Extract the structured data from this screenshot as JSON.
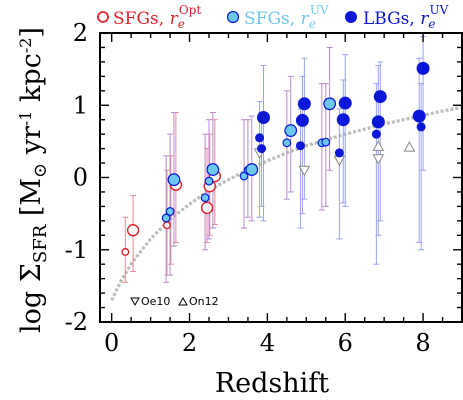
{
  "chart_data": {
    "type": "scatter",
    "xlabel": "Redshift",
    "ylabel": "log ΣSFR [M⊙ yr-1 kpc-2]",
    "ylabel_parts": {
      "prefix": "log Σ",
      "sub": "SFR",
      "bracket_open": " [M",
      "sun": "⊙",
      "yr": " yr",
      "yr_exp": "-1",
      "kpc": " kpc",
      "kpc_exp": "-2",
      "bracket_close": "]"
    },
    "xlim": [
      -0.3,
      9.0
    ],
    "ylim": [
      -2.0,
      2.0
    ],
    "x_ticks": [
      0,
      2,
      4,
      6,
      8
    ],
    "y_ticks": [
      -2,
      -1,
      0,
      1,
      2
    ],
    "grid": false,
    "legend_placement": "top",
    "legend": [
      {
        "name": "SFGs, ",
        "re": "r",
        "sub": "e",
        "sup": "Opt",
        "color": "#e0202c",
        "marker": "open-circle"
      },
      {
        "name": "SFGs, ",
        "re": "r",
        "sub": "e",
        "sup": "UV",
        "color": "#6cc8ee",
        "marker": "filled-circle-outlined"
      },
      {
        "name": "LBGs, ",
        "re": "r",
        "sub": "e",
        "sup": "UV",
        "color": "#0a17d9",
        "marker": "filled-circle"
      }
    ],
    "annotations": [
      {
        "label": "Oe10",
        "marker": "triangle-down"
      },
      {
        "label": "On12",
        "marker": "triangle-up"
      }
    ],
    "colors": {
      "sfg_opt": "#e0202c",
      "sfg_opt_err": "#e88a93",
      "sfg_uv": "#6cc8ee",
      "sfg_uv_err": "#b78ad0",
      "lbg": "#0a17d9",
      "lbg_err": "#9aa3ee",
      "fit": "#bbbbbb",
      "triangles": "#888888"
    },
    "fit_curve": {
      "name": "",
      "x": [
        0,
        0.25,
        0.5,
        0.75,
        1.0,
        1.5,
        2.0,
        2.5,
        3.0,
        3.5,
        4.0,
        4.5,
        5.0,
        5.5,
        6.0,
        6.5,
        7.0,
        7.5,
        8.0,
        8.5,
        9.0
      ],
      "y": [
        -1.7,
        -1.42,
        -1.2,
        -1.02,
        -0.85,
        -0.58,
        -0.37,
        -0.18,
        -0.03,
        0.11,
        0.23,
        0.34,
        0.44,
        0.52,
        0.6,
        0.67,
        0.74,
        0.8,
        0.86,
        0.92,
        0.97
      ]
    },
    "series": [
      {
        "key": "sfg_opt",
        "points": [
          {
            "x": 0.35,
            "y": -1.03,
            "lo": -1.45,
            "hi": -0.55
          },
          {
            "x": 0.55,
            "y": -0.73,
            "lo": -1.3,
            "hi": -0.25
          },
          {
            "x": 1.42,
            "y": -0.66,
            "lo": -1.35,
            "hi": 0.1
          },
          {
            "x": 1.52,
            "y": -0.47,
            "lo": -1.2,
            "hi": 0.3
          },
          {
            "x": 1.65,
            "y": -0.1,
            "lo": -0.9,
            "hi": 0.9
          },
          {
            "x": 2.45,
            "y": -0.42,
            "lo": -0.9,
            "hi": 0.4
          },
          {
            "x": 2.52,
            "y": -0.12,
            "lo": -0.8,
            "hi": 0.6
          },
          {
            "x": 2.65,
            "y": 0.02,
            "lo": -0.65,
            "hi": 0.8
          }
        ]
      },
      {
        "key": "sfg_uv",
        "points": [
          {
            "x": 1.4,
            "y": -0.56,
            "lo": -1.45,
            "hi": 0.3
          },
          {
            "x": 1.5,
            "y": -0.47,
            "lo": -1.35,
            "hi": 0.6
          },
          {
            "x": 1.6,
            "y": -0.03,
            "lo": -0.95,
            "hi": 0.9
          },
          {
            "x": 2.4,
            "y": -0.28,
            "lo": -1.0,
            "hi": 0.6
          },
          {
            "x": 2.5,
            "y": -0.05,
            "lo": -0.85,
            "hi": 0.8
          },
          {
            "x": 2.6,
            "y": 0.11,
            "lo": -0.7,
            "hi": 0.9
          },
          {
            "x": 3.4,
            "y": 0.02,
            "lo": -0.7,
            "hi": 0.8
          },
          {
            "x": 3.5,
            "y": 0.1,
            "lo": -0.55,
            "hi": 0.8
          },
          {
            "x": 3.6,
            "y": 0.11,
            "lo": -0.6,
            "hi": 0.85
          },
          {
            "x": 4.5,
            "y": 0.48,
            "lo": -0.3,
            "hi": 1.2
          },
          {
            "x": 4.6,
            "y": 0.65,
            "lo": -0.2,
            "hi": 1.4
          },
          {
            "x": 5.4,
            "y": 0.48,
            "lo": -0.45,
            "hi": 1.3
          },
          {
            "x": 5.5,
            "y": 0.49,
            "lo": -0.4,
            "hi": 1.3
          },
          {
            "x": 5.6,
            "y": 1.02,
            "lo": 0.1,
            "hi": 1.8
          }
        ]
      },
      {
        "key": "lbg",
        "points": [
          {
            "x": 3.8,
            "y": 0.55,
            "lo": -0.55,
            "hi": 1.05
          },
          {
            "x": 3.85,
            "y": 0.4,
            "lo": -0.4,
            "hi": 0.9
          },
          {
            "x": 3.9,
            "y": 0.83,
            "lo": -0.6,
            "hi": 1.55
          },
          {
            "x": 4.85,
            "y": 0.44,
            "lo": -0.7,
            "hi": 0.95
          },
          {
            "x": 4.9,
            "y": 0.79,
            "lo": -0.5,
            "hi": 1.4
          },
          {
            "x": 4.95,
            "y": 1.02,
            "lo": -0.3,
            "hi": 1.65
          },
          {
            "x": 5.85,
            "y": 0.34,
            "lo": -0.85,
            "hi": 0.95
          },
          {
            "x": 5.95,
            "y": 0.8,
            "lo": -0.35,
            "hi": 1.35
          },
          {
            "x": 6.0,
            "y": 1.03,
            "lo": -0.4,
            "hi": 1.7
          },
          {
            "x": 6.8,
            "y": 0.6,
            "lo": -1.2,
            "hi": 1.3
          },
          {
            "x": 6.85,
            "y": 0.77,
            "lo": -0.8,
            "hi": 1.55
          },
          {
            "x": 6.9,
            "y": 1.12,
            "lo": -0.6,
            "hi": 1.6
          },
          {
            "x": 7.9,
            "y": 0.85,
            "lo": -0.9,
            "hi": 1.65
          },
          {
            "x": 7.95,
            "y": 0.7,
            "lo": -1.0,
            "hi": 1.3
          },
          {
            "x": 8.0,
            "y": 1.51,
            "lo": 0.1,
            "hi": 1.95
          }
        ]
      },
      {
        "key": "oe10",
        "points": [
          {
            "x": 3.8,
            "y": 0.34
          },
          {
            "x": 4.95,
            "y": 0.1
          },
          {
            "x": 5.85,
            "y": 0.24
          },
          {
            "x": 6.85,
            "y": 0.26
          }
        ]
      },
      {
        "key": "on12",
        "points": [
          {
            "x": 6.85,
            "y": 0.43
          },
          {
            "x": 7.65,
            "y": 0.42
          }
        ]
      }
    ]
  }
}
